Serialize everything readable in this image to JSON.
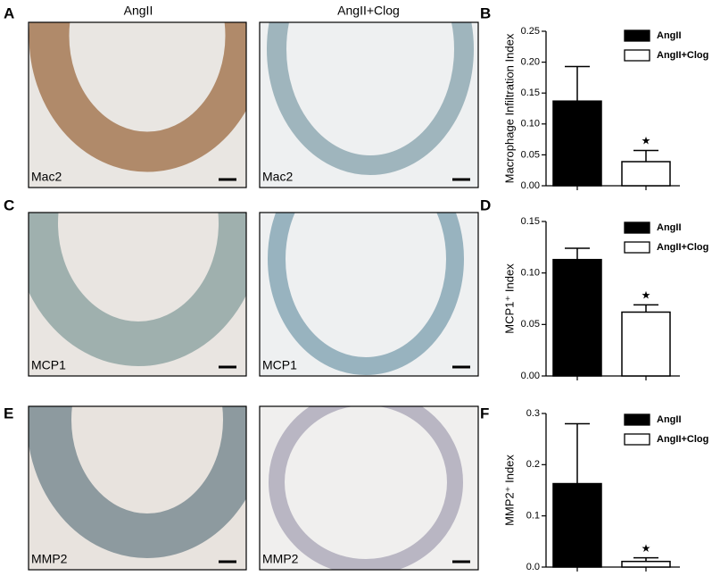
{
  "column_titles": [
    "AngII",
    "AngII+Clog"
  ],
  "panel_letters": [
    "A",
    "B",
    "C",
    "D",
    "E",
    "F"
  ],
  "image_labels": [
    [
      "Mac2",
      "Mac2"
    ],
    [
      "MCP1",
      "MCP1"
    ],
    [
      "MMP2",
      "MMP2"
    ]
  ],
  "chart_data": [
    {
      "type": "bar",
      "ylabel": "Macrophage Infiltration Index",
      "annotation": "★",
      "ylim": [
        0,
        0.25
      ],
      "yticks": [
        {
          "value": 0,
          "label": "0.00"
        },
        {
          "value": 0.05,
          "label": "0.05"
        },
        {
          "value": 0.1,
          "label": "0.10"
        },
        {
          "value": 0.15,
          "label": "0.15"
        },
        {
          "value": 0.2,
          "label": "0.20"
        },
        {
          "value": 0.25,
          "label": "0.25"
        }
      ],
      "series": [
        {
          "name": "AngII",
          "color": "#000000",
          "values": [
            0.137
          ],
          "errors": [
            0.056
          ]
        },
        {
          "name": "AngII+Clog",
          "color": "#ffffff",
          "values": [
            0.039
          ],
          "errors": [
            0.018
          ]
        }
      ]
    },
    {
      "type": "bar",
      "ylabel": "MCP1⁺ Index",
      "annotation": "★",
      "ylim": [
        0,
        0.15
      ],
      "yticks": [
        {
          "value": 0,
          "label": "0.00"
        },
        {
          "value": 0.05,
          "label": "0.05"
        },
        {
          "value": 0.1,
          "label": "0.10"
        },
        {
          "value": 0.15,
          "label": "0.15"
        }
      ],
      "series": [
        {
          "name": "AngII",
          "color": "#000000",
          "values": [
            0.113
          ],
          "errors": [
            0.011
          ]
        },
        {
          "name": "AngII+Clog",
          "color": "#ffffff",
          "values": [
            0.062
          ],
          "errors": [
            0.007
          ]
        }
      ]
    },
    {
      "type": "bar",
      "ylabel": "MMP2⁺ Index",
      "annotation": "★",
      "ylim": [
        0,
        0.3
      ],
      "yticks": [
        {
          "value": 0,
          "label": "0.0"
        },
        {
          "value": 0.1,
          "label": "0.1"
        },
        {
          "value": 0.2,
          "label": "0.2"
        },
        {
          "value": 0.3,
          "label": "0.3"
        }
      ],
      "series": [
        {
          "name": "AngII",
          "color": "#000000",
          "values": [
            0.163
          ],
          "errors": [
            0.117
          ]
        },
        {
          "name": "AngII+Clog",
          "color": "#ffffff",
          "values": [
            0.011
          ],
          "errors": [
            0.007
          ]
        }
      ]
    }
  ]
}
